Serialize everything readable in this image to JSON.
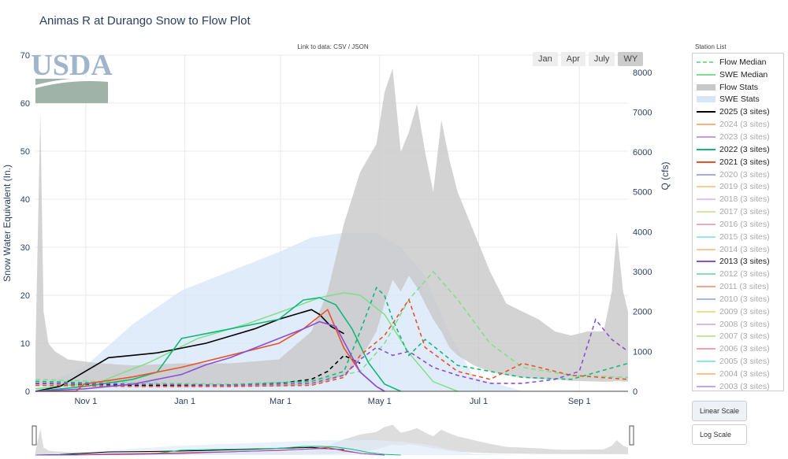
{
  "title": "Animas R at Durango Snow to Flow Plot",
  "data_link": {
    "prefix": "Link to data: ",
    "csv": "CSV",
    "sep": " / ",
    "json": "JSON"
  },
  "range_buttons": [
    "Jan",
    "Apr",
    "July",
    "WY"
  ],
  "active_range": "WY",
  "legend_title": "Station List",
  "scale_buttons": {
    "linear": "Linear Scale",
    "log": "Log Scale"
  },
  "logo_text": "USDA",
  "colors": {
    "logo": "#9fb5cc",
    "logo_band": "#9fb3a8",
    "grid": "#e9e9e9"
  },
  "chart_data": {
    "type": "line",
    "title": "Animas R at Durango Snow to Flow Plot",
    "x_ticks": [
      "Nov 1",
      "Jan 1",
      "Mar 1",
      "May 1",
      "Jul 1",
      "Sep 1"
    ],
    "y_left": {
      "label": "Snow Water Equivalent (In.)",
      "ticks": [
        0,
        10,
        20,
        30,
        40,
        50,
        60,
        70
      ],
      "range": [
        0,
        70
      ]
    },
    "y_right": {
      "label": "Q (cfs)",
      "ticks": [
        0,
        1000,
        2000,
        3000,
        4000,
        5000,
        6000,
        7000,
        8000
      ],
      "range": [
        0,
        8430
      ]
    },
    "grid": true,
    "legend_placement": "right",
    "legend": [
      {
        "name": "Flow Median",
        "color": "#7ee08c",
        "style": "dash",
        "visible": true
      },
      {
        "name": "SWE Median",
        "color": "#7ee08c",
        "style": "solid",
        "visible": true
      },
      {
        "name": "Flow Stats",
        "color": "#c8c8c8",
        "style": "band",
        "visible": true
      },
      {
        "name": "SWE Stats",
        "color": "#d6e6f7",
        "style": "band",
        "visible": true
      },
      {
        "name": "2025 (3 sites)",
        "color": "#000000",
        "style": "solid",
        "visible": true
      },
      {
        "name": "2024 (3 sites)",
        "color": "#f7b37a",
        "style": "solid",
        "visible": false
      },
      {
        "name": "2023 (3 sites)",
        "color": "#c49be8",
        "style": "solid",
        "visible": false
      },
      {
        "name": "2022 (3 sites)",
        "color": "#14b87a",
        "style": "solid",
        "visible": true
      },
      {
        "name": "2021 (3 sites)",
        "color": "#e8542a",
        "style": "solid",
        "visible": true
      },
      {
        "name": "2020 (3 sites)",
        "color": "#a7a9ef",
        "style": "solid",
        "visible": false
      },
      {
        "name": "2019 (3 sites)",
        "color": "#f5cf8d",
        "style": "solid",
        "visible": false
      },
      {
        "name": "2018 (3 sites)",
        "color": "#e8c2ef",
        "style": "solid",
        "visible": false
      },
      {
        "name": "2017 (3 sites)",
        "color": "#cfe8a6",
        "style": "solid",
        "visible": false
      },
      {
        "name": "2016 (3 sites)",
        "color": "#f2a6c2",
        "style": "solid",
        "visible": false
      },
      {
        "name": "2015 (3 sites)",
        "color": "#9ee6f0",
        "style": "solid",
        "visible": false
      },
      {
        "name": "2014 (3 sites)",
        "color": "#f7c99a",
        "style": "solid",
        "visible": false
      },
      {
        "name": "2013 (3 sites)",
        "color": "#8a4fd9",
        "style": "solid",
        "visible": true
      },
      {
        "name": "2012 (3 sites)",
        "color": "#8fd9b6",
        "style": "solid",
        "visible": false
      },
      {
        "name": "2011 (3 sites)",
        "color": "#f4a58a",
        "style": "solid",
        "visible": false
      },
      {
        "name": "2010 (3 sites)",
        "color": "#a9b6f2",
        "style": "solid",
        "visible": false
      },
      {
        "name": "2009 (3 sites)",
        "color": "#f7dc8c",
        "style": "solid",
        "visible": false
      },
      {
        "name": "2008 (3 sites)",
        "color": "#e2b5f2",
        "style": "solid",
        "visible": false
      },
      {
        "name": "2007 (3 sites)",
        "color": "#c5e6a2",
        "style": "solid",
        "visible": false
      },
      {
        "name": "2006 (3 sites)",
        "color": "#f2a0b4",
        "style": "solid",
        "visible": false
      },
      {
        "name": "2005 (3 sites)",
        "color": "#8ce6e0",
        "style": "solid",
        "visible": false
      },
      {
        "name": "2004 (3 sites)",
        "color": "#f7c38f",
        "style": "solid",
        "visible": false
      },
      {
        "name": "2003 (3 sites)",
        "color": "#c8a2e8",
        "style": "solid",
        "visible": false
      }
    ],
    "swe_stats_band": {
      "days": [
        0,
        30,
        60,
        90,
        120,
        150,
        170,
        190,
        210,
        225,
        240,
        255,
        270,
        300,
        365
      ],
      "min": [
        0,
        0,
        0,
        0,
        0,
        0,
        0,
        0,
        0,
        0,
        0,
        0,
        0,
        0,
        0
      ],
      "max": [
        1,
        5,
        14,
        21,
        25,
        29,
        32,
        33,
        33,
        30,
        24,
        12,
        3,
        0,
        0
      ]
    },
    "swe_median": {
      "days": [
        0,
        40,
        70,
        100,
        130,
        155,
        175,
        190,
        200,
        215,
        230,
        245,
        260
      ],
      "values": [
        0.5,
        2,
        6,
        11,
        14,
        17,
        19.5,
        20.5,
        20,
        16,
        8,
        2,
        0
      ]
    },
    "flow_median": {
      "days": [
        0,
        60,
        120,
        170,
        200,
        215,
        230,
        245,
        260,
        280,
        300,
        330,
        365
      ],
      "values": [
        300,
        220,
        180,
        250,
        500,
        1200,
        2300,
        3000,
        2300,
        1200,
        600,
        400,
        350
      ]
    },
    "flow_stats_band": {
      "days": [
        0,
        3,
        5,
        8,
        12,
        20,
        40,
        60,
        90,
        120,
        150,
        170,
        180,
        190,
        200,
        210,
        215,
        220,
        225,
        230,
        235,
        240,
        245,
        250,
        255,
        260,
        270,
        280,
        290,
        300,
        310,
        320,
        330,
        340,
        350,
        355,
        358,
        362,
        365
      ],
      "min": [
        150,
        140,
        140,
        130,
        130,
        120,
        110,
        110,
        110,
        110,
        120,
        150,
        250,
        400,
        800,
        1500,
        2200,
        2800,
        2500,
        2900,
        2600,
        2200,
        1800,
        1500,
        1100,
        900,
        650,
        500,
        400,
        350,
        300,
        300,
        260,
        250,
        240,
        240,
        260,
        240,
        240
      ],
      "max": [
        1000,
        7000,
        2000,
        1200,
        1000,
        800,
        700,
        650,
        700,
        700,
        800,
        1500,
        2500,
        4200,
        5500,
        6200,
        7500,
        8100,
        6000,
        6500,
        7200,
        6000,
        5000,
        6800,
        5800,
        5000,
        4000,
        3000,
        2200,
        2000,
        1800,
        1500,
        1400,
        1500,
        1500,
        2500,
        4000,
        2500,
        2000
      ]
    },
    "series": [
      {
        "name": "2025 (3 sites)",
        "swe_days": [
          0,
          15,
          30,
          45,
          60,
          75,
          90,
          105,
          120,
          135,
          150,
          160,
          170,
          175,
          182,
          190
        ],
        "swe": [
          0,
          1,
          4,
          7,
          7.5,
          8,
          9,
          10,
          11.5,
          13,
          15,
          16,
          17,
          16,
          13.5,
          12
        ],
        "flow_days": [
          0,
          30,
          60,
          90,
          120,
          150,
          170,
          180,
          190,
          200
        ],
        "flow": [
          200,
          180,
          150,
          150,
          160,
          200,
          300,
          500,
          900,
          700
        ]
      },
      {
        "name": "2022 (3 sites)",
        "swe_days": [
          0,
          30,
          60,
          75,
          90,
          105,
          120,
          135,
          150,
          165,
          175,
          185,
          195,
          205,
          215,
          225
        ],
        "swe": [
          0,
          1,
          2.5,
          4,
          11,
          12,
          13,
          14,
          15,
          19,
          19.5,
          18,
          13,
          6,
          1.5,
          0
        ],
        "flow_days": [
          0,
          60,
          120,
          170,
          190,
          200,
          210,
          215,
          220,
          230,
          240,
          260,
          300,
          330,
          365
        ],
        "flow": [
          250,
          180,
          160,
          250,
          500,
          1500,
          2600,
          2400,
          1800,
          900,
          1300,
          650,
          350,
          300,
          700
        ]
      },
      {
        "name": "2021 (3 sites)",
        "swe_days": [
          0,
          25,
          30,
          60,
          75,
          90,
          120,
          150,
          165,
          180,
          190,
          200,
          210,
          215
        ],
        "swe": [
          0,
          0,
          1.5,
          3,
          4,
          5,
          7.5,
          10,
          13,
          17,
          9,
          4,
          1,
          0
        ],
        "flow_days": [
          0,
          60,
          120,
          170,
          190,
          200,
          215,
          230,
          240,
          260,
          280,
          300,
          330,
          365
        ],
        "flow": [
          150,
          120,
          120,
          150,
          350,
          900,
          1400,
          2300,
          1100,
          500,
          300,
          700,
          400,
          300
        ]
      },
      {
        "name": "2013 (3 sites)",
        "swe_days": [
          0,
          30,
          60,
          90,
          105,
          120,
          150,
          165,
          175,
          185,
          200,
          210,
          215
        ],
        "swe": [
          0,
          0.5,
          1.5,
          3.5,
          5.5,
          7,
          11,
          13,
          14.5,
          13.5,
          4,
          1,
          0
        ],
        "flow_days": [
          0,
          60,
          120,
          170,
          190,
          200,
          210,
          220,
          230,
          245,
          260,
          280,
          300,
          320,
          335,
          345,
          355,
          365
        ],
        "flow": [
          200,
          180,
          150,
          200,
          400,
          800,
          1100,
          900,
          1000,
          600,
          400,
          200,
          200,
          300,
          500,
          1800,
          1300,
          1000
        ]
      }
    ]
  }
}
